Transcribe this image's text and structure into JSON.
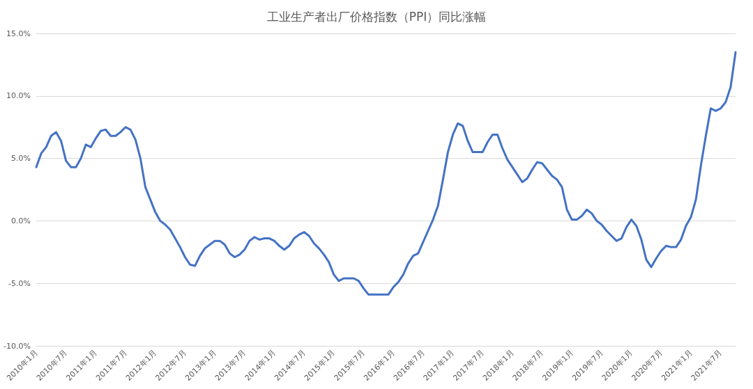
{
  "chart_data": {
    "type": "line",
    "title": "工业生产者出厂价格指数（PPI）同比涨幅",
    "categories": [
      "2010年1月",
      null,
      null,
      null,
      null,
      null,
      "2010年7月",
      null,
      null,
      null,
      null,
      null,
      "2011年1月",
      null,
      null,
      null,
      null,
      null,
      "2011年7月",
      null,
      null,
      null,
      null,
      null,
      "2012年1月",
      null,
      null,
      null,
      null,
      null,
      "2012年7月",
      null,
      null,
      null,
      null,
      null,
      "2013年1月",
      null,
      null,
      null,
      null,
      null,
      "2013年7月",
      null,
      null,
      null,
      null,
      null,
      "2014年1月",
      null,
      null,
      null,
      null,
      null,
      "2014年7月",
      null,
      null,
      null,
      null,
      null,
      "2015年1月",
      null,
      null,
      null,
      null,
      null,
      "2015年7月",
      null,
      null,
      null,
      null,
      null,
      "2016年1月",
      null,
      null,
      null,
      null,
      null,
      "2016年7月",
      null,
      null,
      null,
      null,
      null,
      "2017年1月",
      null,
      null,
      null,
      null,
      null,
      "2017年7月",
      null,
      null,
      null,
      null,
      null,
      "2018年1月",
      null,
      null,
      null,
      null,
      null,
      "2018年7月",
      null,
      null,
      null,
      null,
      null,
      "2019年1月",
      null,
      null,
      null,
      null,
      null,
      "2019年7月",
      null,
      null,
      null,
      null,
      null,
      "2020年1月",
      null,
      null,
      null,
      null,
      null,
      "2020年7月",
      null,
      null,
      null,
      null,
      null,
      "2021年1月",
      null,
      null,
      null,
      null,
      null,
      "2021年7月",
      null,
      null,
      null
    ],
    "series": [
      {
        "color": "#4472c4",
        "values": [
          4.3,
          5.4,
          5.9,
          6.8,
          7.1,
          6.4,
          4.8,
          4.3,
          4.3,
          5.0,
          6.1,
          5.9,
          6.6,
          7.2,
          7.3,
          6.8,
          6.8,
          7.1,
          7.5,
          7.3,
          6.5,
          5.0,
          2.7,
          1.7,
          0.7,
          0.0,
          -0.3,
          -0.7,
          -1.4,
          -2.1,
          -2.9,
          -3.5,
          -3.6,
          -2.8,
          -2.2,
          -1.9,
          -1.6,
          -1.6,
          -1.9,
          -2.6,
          -2.9,
          -2.7,
          -2.3,
          -1.6,
          -1.3,
          -1.5,
          -1.4,
          -1.4,
          -1.6,
          -2.0,
          -2.3,
          -2.0,
          -1.4,
          -1.1,
          -0.9,
          -1.2,
          -1.8,
          -2.2,
          -2.7,
          -3.3,
          -4.3,
          -4.8,
          -4.6,
          -4.6,
          -4.6,
          -4.8,
          -5.4,
          -5.9,
          -5.9,
          -5.9,
          -5.9,
          -5.9,
          -5.3,
          -4.9,
          -4.3,
          -3.4,
          -2.8,
          -2.6,
          -1.7,
          -0.8,
          0.1,
          1.2,
          3.3,
          5.5,
          6.9,
          7.8,
          7.6,
          6.4,
          5.5,
          5.5,
          5.5,
          6.3,
          6.9,
          6.9,
          5.8,
          4.9,
          4.3,
          3.7,
          3.1,
          3.4,
          4.1,
          4.7,
          4.6,
          4.1,
          3.6,
          3.3,
          2.7,
          0.9,
          0.1,
          0.1,
          0.4,
          0.9,
          0.6,
          0.0,
          -0.3,
          -0.8,
          -1.2,
          -1.6,
          -1.4,
          -0.5,
          0.1,
          -0.4,
          -1.5,
          -3.1,
          -3.7,
          -3.0,
          -2.4,
          -2.0,
          -2.1,
          -2.1,
          -1.5,
          -0.4,
          0.3,
          1.7,
          4.4,
          6.8,
          9.0,
          8.8,
          9.0,
          9.5,
          10.7,
          13.5
        ]
      }
    ],
    "ylim": [
      -10,
      15
    ],
    "yticks": [
      {
        "value": -10,
        "label": "-10.0%"
      },
      {
        "value": -5,
        "label": "-5.0%"
      },
      {
        "value": 0,
        "label": "0.0%"
      },
      {
        "value": 5,
        "label": "5.0%"
      },
      {
        "value": 10,
        "label": "10.0%"
      },
      {
        "value": 15,
        "label": "15.0%"
      }
    ],
    "grid": "y",
    "marker": "none",
    "line_style": "solid"
  }
}
